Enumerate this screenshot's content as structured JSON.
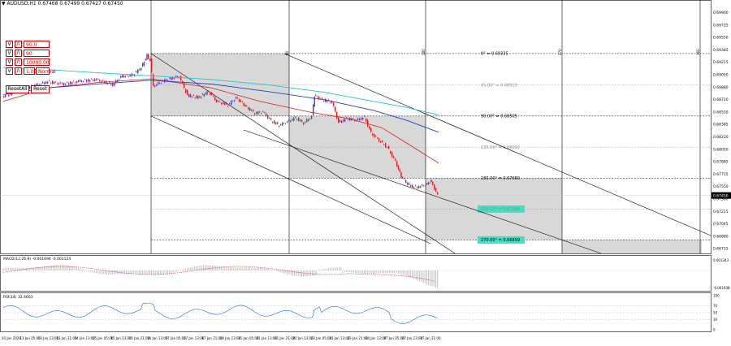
{
  "header": {
    "symbol_line": "AUDUSD,H1  0.67468 0.67499 0.67427 0.67450"
  },
  "colors": {
    "bull": "#4040c0",
    "bear": "#d02020",
    "ma_fast": "#d02020",
    "ma_mid": "#2040c0",
    "ma_slow": "#20c0d0",
    "macd_hist": "#c0c0c0",
    "macd_signal": "#e03030",
    "rsi_line": "#2070d0",
    "gann_box": "#d8d8d8",
    "highlight": "#40e0c0"
  },
  "controls": {
    "field_1": "90.0",
    "field_2": "90",
    "field_3": "10000.00",
    "field_4": "1.00",
    "field_4_label": "Normal",
    "reset_all": "ResetAll",
    "reset": "Reset",
    "chip_v": "V",
    "chip_a": "/\\"
  },
  "price_axis": {
    "labels": [
      "0.69900",
      "0.69725",
      "0.69550",
      "0.69385",
      "0.69215",
      "0.69050",
      "0.68880",
      "0.68720",
      "0.68550",
      "0.68385",
      "0.68220",
      "0.68050",
      "0.67885",
      "0.67715",
      "0.67550",
      "0.67380",
      "0.67215",
      "0.67045",
      "0.66880",
      "0.66715"
    ],
    "current": "0.67450"
  },
  "gann": {
    "levels": [
      {
        "label": "0° = 0.69335",
        "highlight": false,
        "price": 0.69335
      },
      {
        "label": "45.00° = 0.68919",
        "highlight": false,
        "price": 0.68919,
        "faded": true
      },
      {
        "label": "90.00° = 0.68505",
        "highlight": false,
        "price": 0.68505
      },
      {
        "label": "135.00° = 0.68092",
        "highlight": false,
        "price": 0.68092,
        "faded": true
      },
      {
        "label": "180.00° = 0.67680",
        "highlight": false,
        "price": 0.6768
      },
      {
        "label": "225.00° = 0.67269",
        "highlight": true,
        "price": 0.67269,
        "faded": true
      },
      {
        "label": "270.00° = 0.66859",
        "highlight": true,
        "price": 0.66859
      }
    ],
    "vertical_labels": [
      "90",
      "180",
      "270",
      "360"
    ]
  },
  "macd": {
    "label": "MACD(12,26,9) -0.001694 -0.001124",
    "axis": [
      "0.001343",
      "-0.001938"
    ]
  },
  "rsi": {
    "label": "RSI(14) 32.4663",
    "axis": [
      "100",
      "70",
      "50",
      "30",
      "0"
    ]
  },
  "time_axis": [
    "20 Jan 2020",
    "13 Jan 05:00",
    "13 Jan 13:00",
    "13 Jan 21:00",
    "14 Jan 13:00",
    "15 Jan 05:00",
    "15 Jan 13:00",
    "15 Jan 21:00",
    "16 Jan 13:00",
    "17 Jan 05:00",
    "17 Jan 13:00",
    "17 Jan 21:00",
    "20 Jan 13:00",
    "21 Jan 05:00",
    "21 Jan 13:00",
    "21 Jan 21:00",
    "22 Jan 13:00",
    "23 Jan 05:00",
    "23 Jan 13:00",
    "23 Jan 21:00",
    "24 Jan 13:00",
    "27 Jan 05:00",
    "27 Jan 13:00",
    "27 Jan 21:00"
  ]
}
